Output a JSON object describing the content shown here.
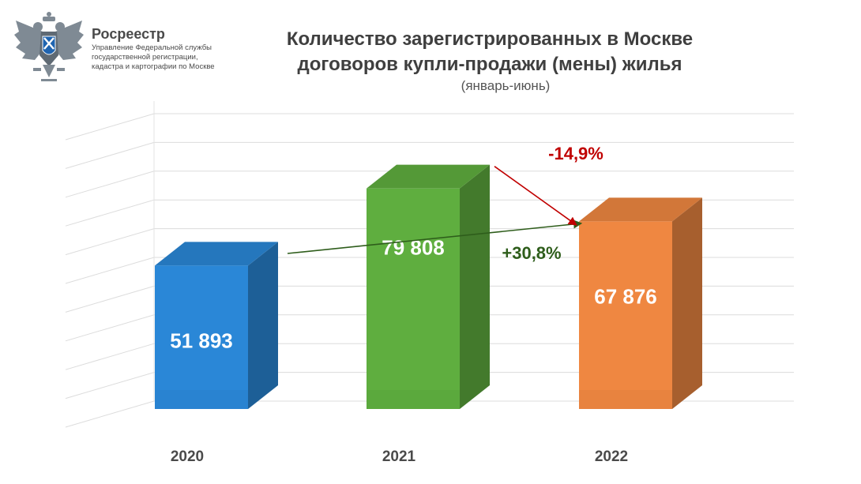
{
  "header": {
    "org_name": "Росреестр",
    "org_desc": "Управление Федеральной службы\nгосударственной регистрации,\nкадастра и картографии по Москве",
    "logo_icon": "double-headed-eagle-emblem-icon"
  },
  "chart_data": {
    "type": "bar",
    "title": "Количество зарегистрированных в Москве\nдоговоров купли-продажи (мены) жилья",
    "subtitle": "(январь-июнь)",
    "categories": [
      "2020",
      "2021",
      "2022"
    ],
    "values": [
      51893,
      79808,
      67876
    ],
    "value_labels": [
      "51 893",
      "79 808",
      "67 876"
    ],
    "colors": [
      "#2a87d7",
      "#5fae3f",
      "#ef8741"
    ],
    "ylim": [
      0,
      100000
    ],
    "grid": true,
    "annotations": [
      {
        "text": "+30,8%",
        "from": "2020",
        "to": "2022",
        "color": "#2e5d1b"
      },
      {
        "text": "-14,9%",
        "from": "2021",
        "to": "2022",
        "color": "#c00000"
      }
    ]
  }
}
